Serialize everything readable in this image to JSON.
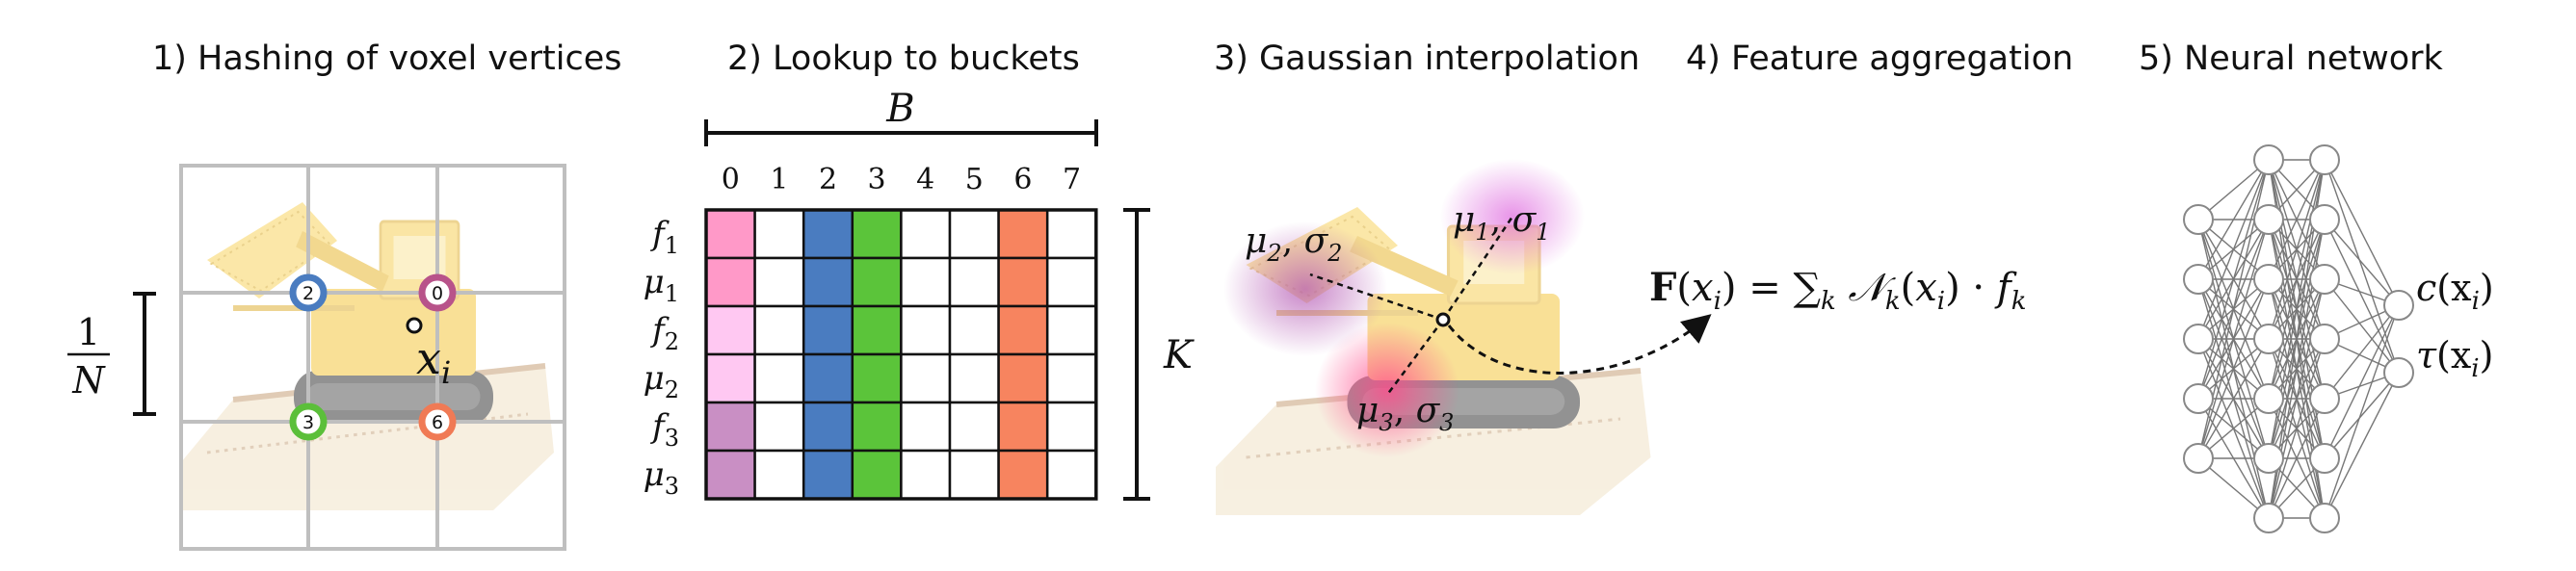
{
  "steps": [
    "1)  Hashing of voxel vertices",
    "2) Lookup to buckets",
    "3) Gaussian interpolation",
    "4) Feature aggregation",
    "5) Neural network"
  ],
  "panel1": {
    "scale_num": "1",
    "scale_den": "N",
    "point_label": "x",
    "point_sub": "i",
    "vertices": [
      {
        "label": "2",
        "color": "#4a7cc0"
      },
      {
        "label": "0",
        "color": "#b8538a"
      },
      {
        "label": "3",
        "color": "#5bbf3a"
      },
      {
        "label": "6",
        "color": "#f07a55"
      }
    ]
  },
  "panel2": {
    "top_label": "B",
    "side_label": "K",
    "columns": [
      "0",
      "1",
      "2",
      "3",
      "4",
      "5",
      "6",
      "7"
    ],
    "rows": [
      {
        "sym": "f",
        "sub": "1"
      },
      {
        "sym": "μ",
        "sub": "1"
      },
      {
        "sym": "f",
        "sub": "2"
      },
      {
        "sym": "μ",
        "sub": "2"
      },
      {
        "sym": "f",
        "sub": "3"
      },
      {
        "sym": "μ",
        "sub": "3"
      }
    ],
    "column_colors": {
      "2": "#4a7cc0",
      "3": "#5bc43a",
      "6": "#f7845f"
    },
    "column0_colors": [
      "#ff99c8",
      "#ff99c8",
      "#ffc8f2",
      "#ffc8f2",
      "#c98fc4",
      "#c98fc4"
    ]
  },
  "panel3": {
    "g1": {
      "mu": "μ",
      "sigma": "σ",
      "sub": "1"
    },
    "g2": {
      "mu": "μ",
      "sigma": "σ",
      "sub": "2"
    },
    "g3": {
      "mu": "μ",
      "sigma": "σ",
      "sub": "3"
    }
  },
  "panel4": {
    "F": "F",
    "open": "(",
    "x": "x",
    "xsub": "i",
    "close": ")",
    "eq": " = ",
    "sum": "∑",
    "sum_sub": "k",
    "N": "𝒩",
    "N_sub": "k",
    "dot": " · ",
    "f": "f",
    "f_sub": "k"
  },
  "panel5": {
    "layer_sizes": [
      5,
      7,
      7,
      2
    ],
    "output1": {
      "name": "c",
      "arg": "(x",
      "sub": "i",
      "close": ")"
    },
    "output2": {
      "name": "τ",
      "arg": "(x",
      "sub": "i",
      "close": ")"
    }
  }
}
